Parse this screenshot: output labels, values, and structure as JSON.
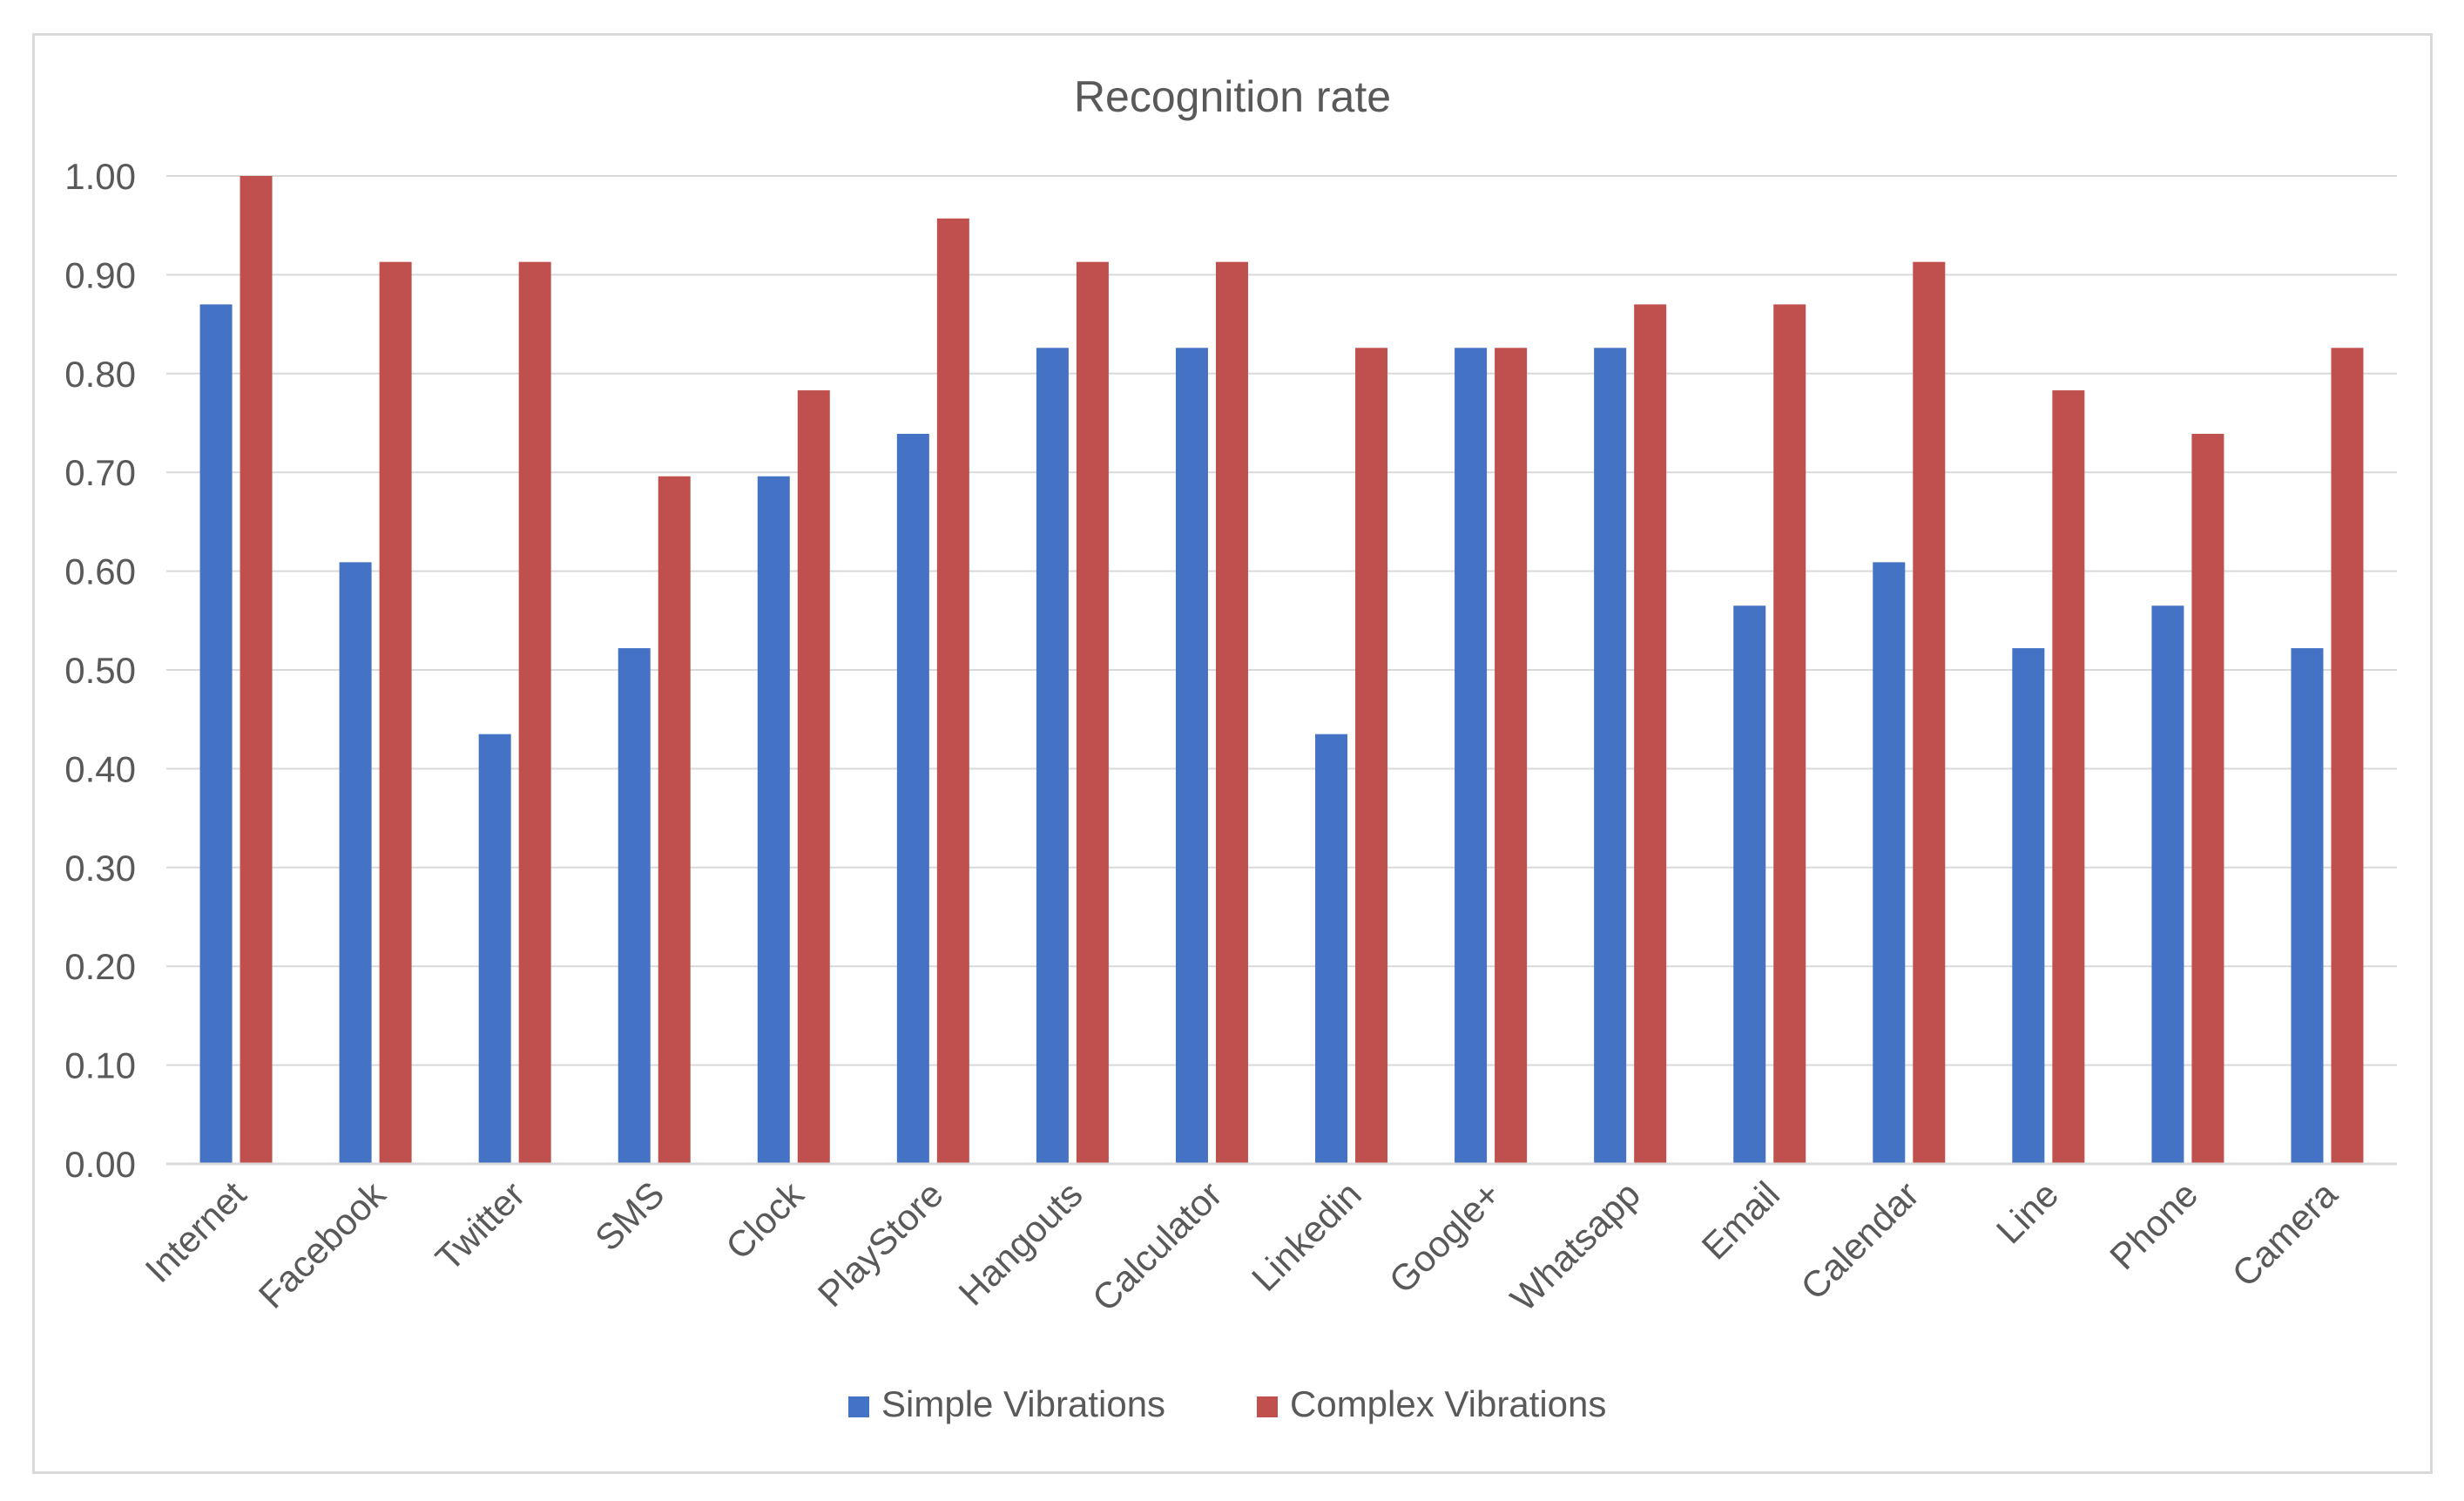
{
  "chart_data": {
    "type": "bar",
    "title": "Recognition rate",
    "xlabel": "",
    "ylabel": "",
    "ylim": [
      0,
      1
    ],
    "y_ticks": [
      "0.00",
      "0.10",
      "0.20",
      "0.30",
      "0.40",
      "0.50",
      "0.60",
      "0.70",
      "0.80",
      "0.90",
      "1.00"
    ],
    "grid": true,
    "legend_position": "bottom",
    "categories": [
      "Internet",
      "Facebook",
      "Twitter",
      "SMS",
      "Clock",
      "PlayStore",
      "Hangouts",
      "Calculator",
      "Linkedin",
      "Google+",
      "Whatsapp",
      "Email",
      "Calendar",
      "Line",
      "Phone",
      "Camera"
    ],
    "series": [
      {
        "name": "Simple Vibrations",
        "color": "#4472c4",
        "values": [
          0.87,
          0.609,
          0.435,
          0.522,
          0.696,
          0.739,
          0.826,
          0.826,
          0.435,
          0.826,
          0.826,
          0.565,
          0.609,
          0.522,
          0.565,
          0.522
        ]
      },
      {
        "name": "Complex Vibrations",
        "color": "#c0504d",
        "values": [
          1.0,
          0.913,
          0.913,
          0.696,
          0.783,
          0.957,
          0.913,
          0.913,
          0.826,
          0.826,
          0.87,
          0.87,
          0.913,
          0.783,
          0.739,
          0.826
        ]
      }
    ]
  }
}
